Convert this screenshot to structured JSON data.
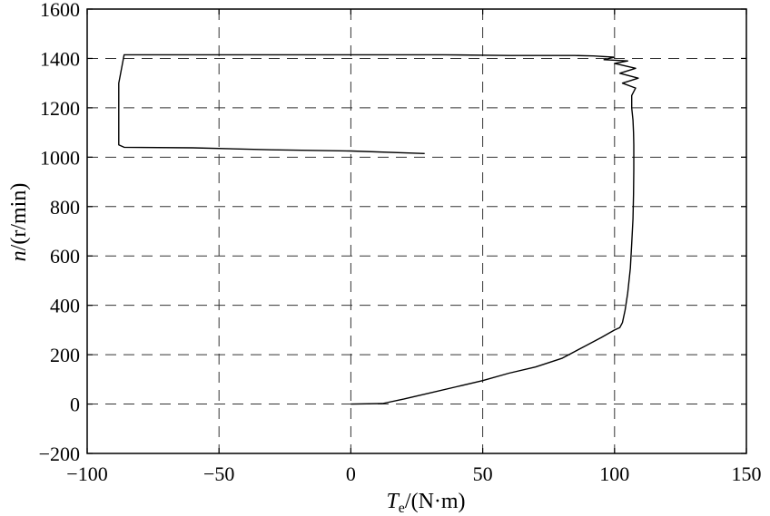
{
  "chart_data": {
    "type": "line",
    "xlabel": {
      "symbol": "T",
      "subscript": "e",
      "unit": "/(N·m)"
    },
    "ylabel": {
      "symbol": "n",
      "unit": "/(r/min)"
    },
    "xlim": [
      -100,
      150
    ],
    "ylim": [
      -200,
      1600
    ],
    "xticks": [
      -100,
      -50,
      0,
      50,
      100,
      150
    ],
    "yticks": [
      -200,
      0,
      200,
      400,
      600,
      800,
      1000,
      1200,
      1400,
      1600
    ],
    "xtick_labels": [
      "−100",
      "−50",
      "0",
      "50",
      "100",
      "150"
    ],
    "ytick_labels": [
      "−200",
      "0",
      "200",
      "400",
      "600",
      "800",
      "1000",
      "1200",
      "1400",
      "1600"
    ],
    "grid": true,
    "grid_style": "dashed",
    "line_color": "#000000",
    "series": [
      {
        "x": [
          0,
          12,
          20,
          30,
          40,
          50,
          60,
          70,
          80,
          88,
          95,
          100,
          102,
          103,
          104,
          105,
          106,
          106.5,
          107,
          107.2,
          107.3,
          107.3,
          107.2,
          107.0,
          106.5,
          106.5,
          108,
          103,
          109,
          102,
          108,
          100,
          105,
          96,
          100,
          92,
          85,
          60,
          35,
          0,
          -86,
          -88,
          -88,
          -86,
          -60,
          -30,
          0,
          28
        ],
        "y": [
          0,
          2,
          20,
          45,
          70,
          95,
          125,
          150,
          185,
          230,
          270,
          300,
          310,
          330,
          380,
          450,
          550,
          650,
          750,
          850,
          950,
          1050,
          1100,
          1150,
          1200,
          1250,
          1280,
          1300,
          1320,
          1340,
          1360,
          1380,
          1390,
          1395,
          1405,
          1410,
          1412,
          1412,
          1415,
          1415,
          1415,
          1300,
          1050,
          1040,
          1038,
          1030,
          1025,
          1015
        ]
      }
    ]
  }
}
